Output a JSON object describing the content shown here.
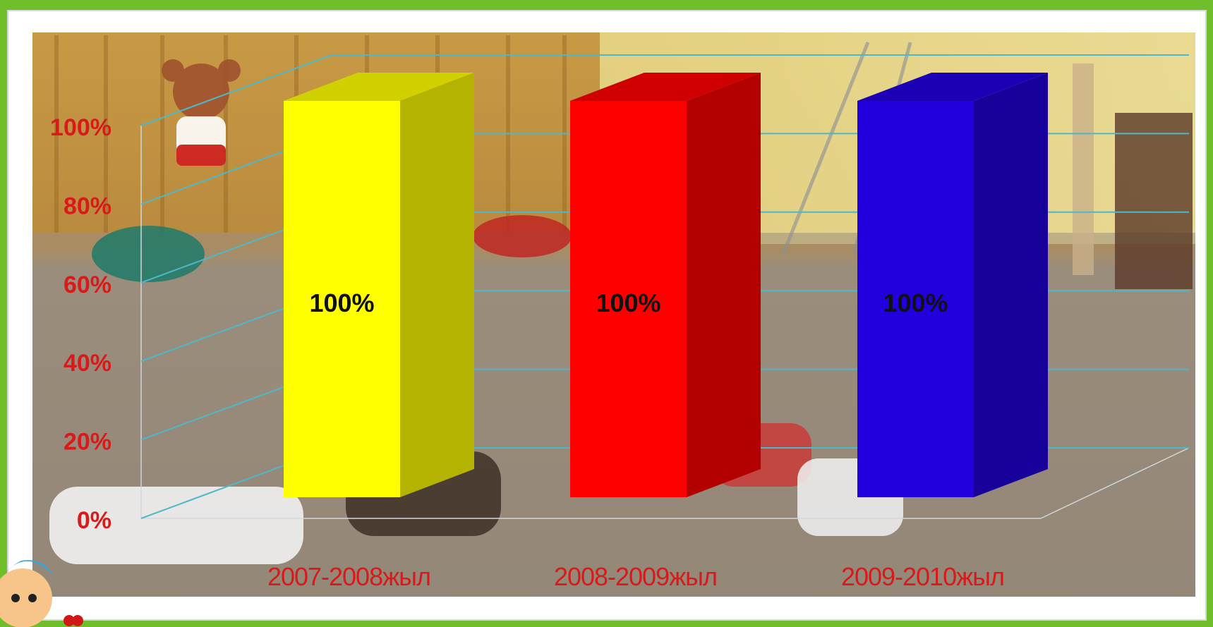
{
  "chart_data": {
    "type": "bar",
    "style": "3d-column",
    "categories": [
      "2007-2008жыл",
      "2008-2009жыл",
      "2009-2010жыл"
    ],
    "values": [
      100,
      100,
      100
    ],
    "data_labels": [
      "100%",
      "100%",
      "100%"
    ],
    "bar_colors": [
      "#ffff00",
      "#ff0000",
      "#2200dd"
    ],
    "ylim": [
      0,
      100
    ],
    "yticks": [
      0,
      20,
      40,
      60,
      80,
      100
    ],
    "ytick_labels": [
      "0%",
      "20%",
      "40%",
      "60%",
      "80%",
      "100%"
    ],
    "grid": true,
    "legend": "none",
    "background": "photo"
  },
  "colors": {
    "page_background": "#6fbf2a",
    "label_red": "#d91a1a",
    "gridline": "#4fb8c8"
  }
}
